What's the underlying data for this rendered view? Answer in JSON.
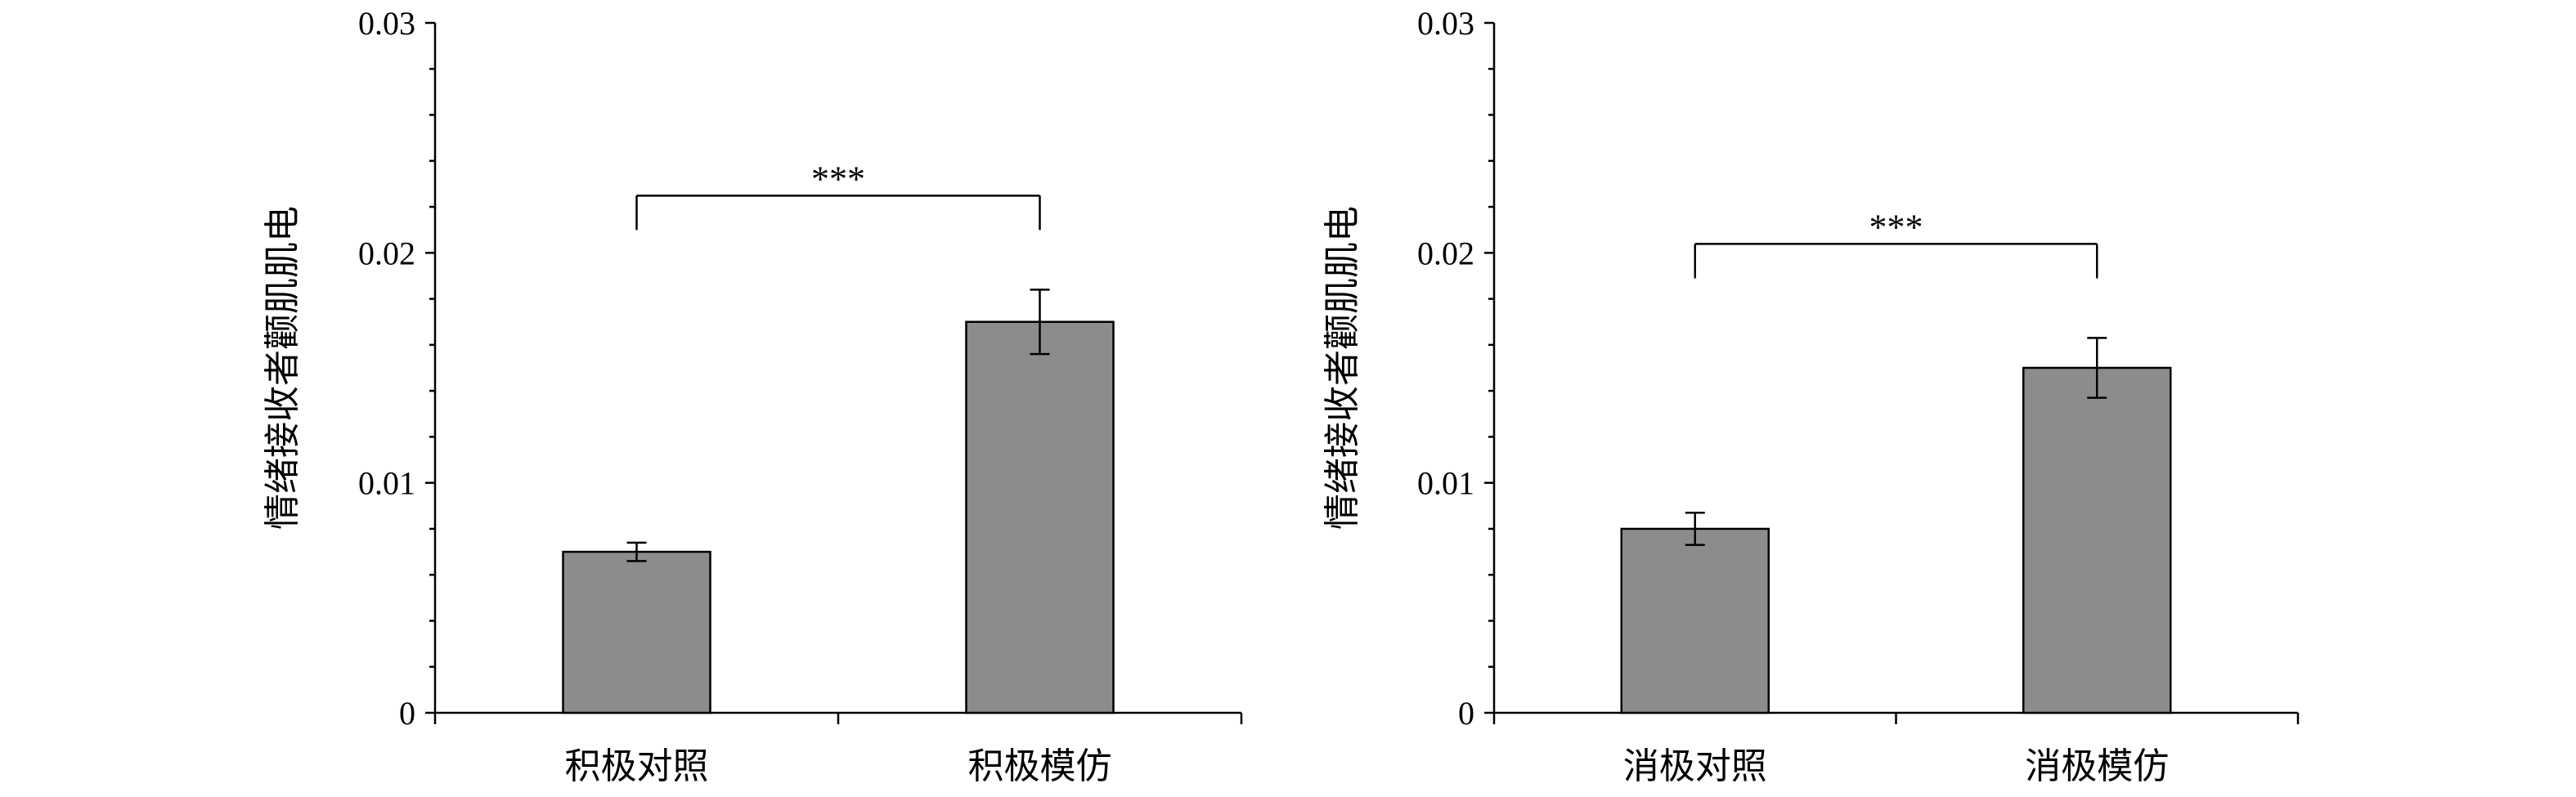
{
  "chart_data": [
    {
      "type": "bar",
      "ylabel": "情绪接收者颧肌肌电",
      "xlabel": "",
      "ylim": [
        0,
        0.03
      ],
      "yticks": [
        "0",
        "0.01",
        "0.02",
        "0.03"
      ],
      "categories": [
        "积极对照",
        "积极模仿"
      ],
      "values": [
        0.007,
        0.017
      ],
      "errors": [
        0.0004,
        0.0014
      ],
      "bar_color": "#8c8c8c",
      "significance": {
        "from": 0,
        "to": 1,
        "label": "***"
      }
    },
    {
      "type": "bar",
      "ylabel": "情绪接收者颧肌肌电",
      "xlabel": "",
      "ylim": [
        0,
        0.03
      ],
      "yticks": [
        "0",
        "0.01",
        "0.02",
        "0.03"
      ],
      "categories": [
        "消极对照",
        "消极模仿"
      ],
      "values": [
        0.008,
        0.015
      ],
      "errors": [
        0.0007,
        0.0013
      ],
      "bar_color": "#8c8c8c",
      "significance": {
        "from": 0,
        "to": 1,
        "label": "***"
      }
    }
  ]
}
